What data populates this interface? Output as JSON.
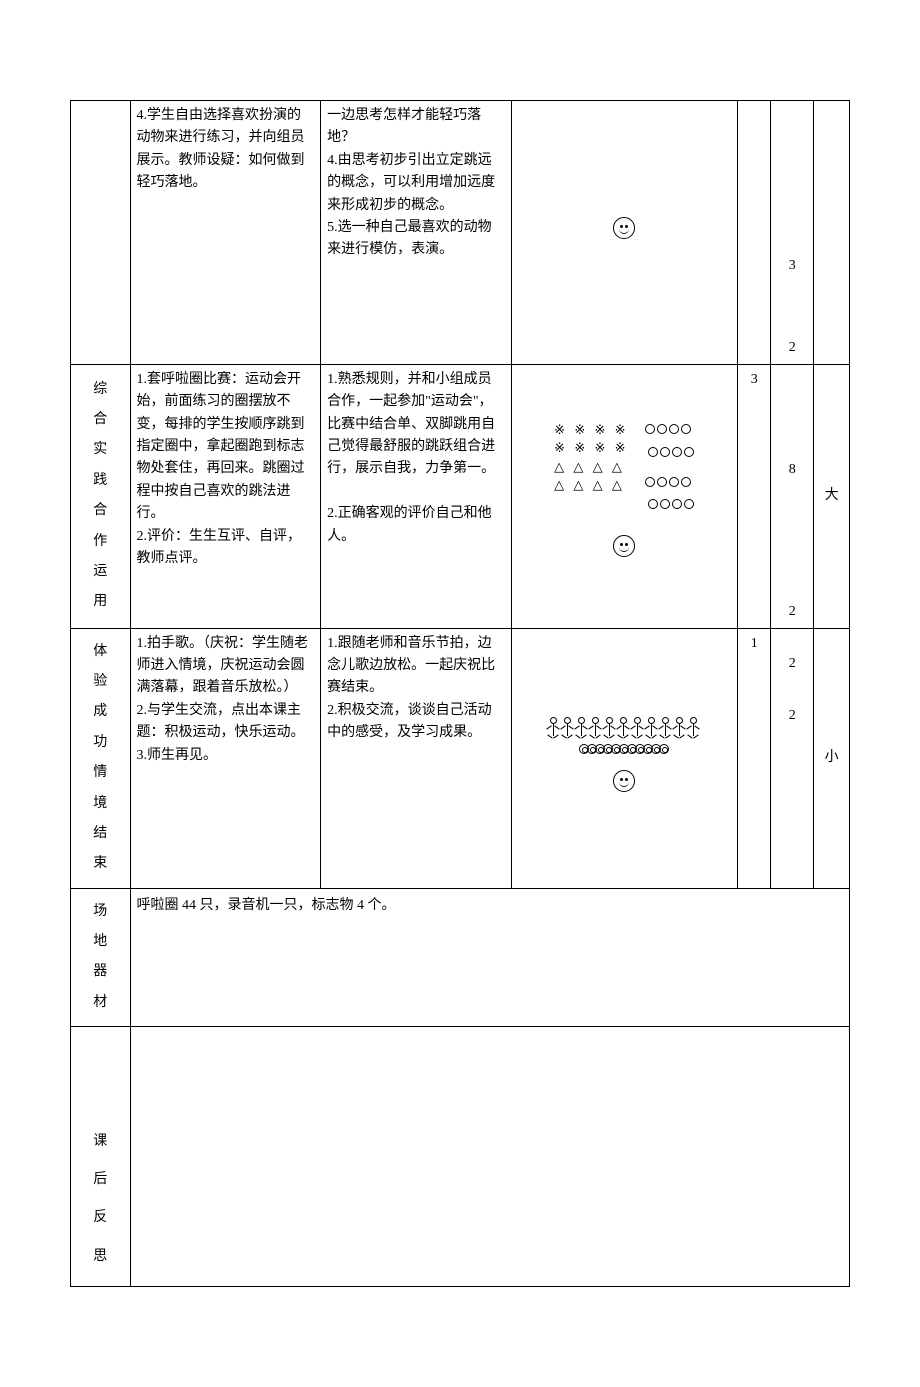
{
  "rows": [
    {
      "label": "",
      "activity": "4.学生自由选择喜欢扮演的动物来进行练习，并向组员展示。教师设疑：如何做到轻巧落地。",
      "requirement": "一边思考怎样才能轻巧落地？\n4.由思考初步引出立定跳远的概念，可以利用增加远度来形成初步的概念。\n5.选一种自己最喜欢的动物来进行模仿，表演。",
      "diagram_type": "smiley_only",
      "n1": "",
      "n2_items": [
        "3",
        "2"
      ],
      "n3": ""
    },
    {
      "label_chars": [
        "综",
        "合",
        "实",
        "践",
        "合",
        "作",
        "运",
        "用"
      ],
      "activity": "1.套呼啦圈比赛：运动会开始，前面练习的圈摆放不变，每排的学生按顺序跳到指定圈中，拿起圈跑到标志物处套住，再回来。跳圈过程中按自己喜欢的跳法进行。\n2.评价：生生互评、自评，教师点评。",
      "requirement": "1.熟悉规则，并和小组成员合作，一起参加\"运动会\"，比赛中结合单、双脚跳用自己觉得最舒服的跳跃组合进行，展示自我，力争第一。\n\n2.正确客观的评价自己和他人。",
      "diagram_type": "grid_circles",
      "grid_symbols": {
        "snow": "※",
        "tri": "△"
      },
      "n1": "3",
      "n2_items": [
        "8",
        "2"
      ],
      "n3": "大"
    },
    {
      "label_chars": [
        "体",
        "验",
        "成",
        "功",
        "情",
        "境",
        "结",
        "束"
      ],
      "activity": "1.拍手歌。（庆祝：学生随老师进入情境，庆祝运动会圆满落幕，跟着音乐放松。）\n2.与学生交流，点出本课主题：积极运动，快乐运动。\n3.师生再见。",
      "requirement": "1.跟随老师和音乐节拍，边念儿歌边放松。一起庆祝比赛结束。\n2.积极交流，谈谈自己活动中的感受，及学习成果。",
      "diagram_type": "stick_figures",
      "n1": "1",
      "n2_items": [
        "2",
        "2"
      ],
      "n3": "小"
    }
  ],
  "equipment": {
    "label_chars": [
      "场",
      "地",
      "器",
      "材"
    ],
    "text": "呼啦圈 44 只，录音机一只，标志物 4 个。"
  },
  "reflection_label_chars": [
    "课",
    "后",
    "反",
    "思"
  ]
}
